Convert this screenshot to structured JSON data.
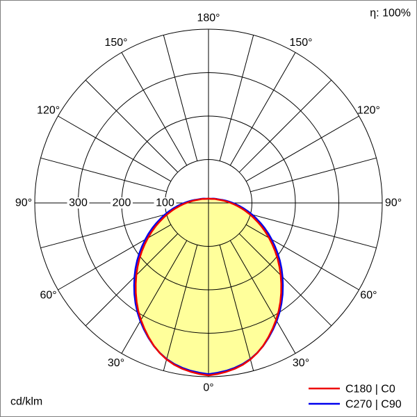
{
  "labels": {
    "efficiency": "η: 100%",
    "unit": "cd/klm"
  },
  "chart_data": {
    "type": "line",
    "coordinate_system": "polar",
    "description": "Luminous intensity distribution curve (photometric polar diagram), 0° at nadir (bottom), values in cd/klm, curves symmetric left/right",
    "unit": "cd/klm",
    "fill_color": "#ffff9b",
    "radial_ticks": [
      100,
      200,
      300
    ],
    "radial_max": 400,
    "spoke_step_deg": 15,
    "gamma_step_deg": 15,
    "gamma_deg": [
      0,
      15,
      30,
      45,
      60,
      75,
      90,
      105,
      120,
      135,
      150,
      165,
      180
    ],
    "series": [
      {
        "name": "C180 | C0",
        "plane": "c180-c0",
        "color": "#ee0000",
        "values": [
          397,
          373,
          311,
          235,
          161,
          97,
          51,
          27,
          18,
          13,
          11,
          10,
          10
        ]
      },
      {
        "name": "C270 | C90",
        "plane": "c270-c90",
        "color": "#0000ee",
        "values": [
          394,
          372,
          314,
          241,
          168,
          104,
          56,
          29,
          19,
          14,
          11,
          10,
          10
        ]
      }
    ],
    "angle_labels": [
      {
        "deg": 0,
        "label": "0°"
      },
      {
        "deg": 30,
        "label": "30°"
      },
      {
        "deg": 60,
        "label": "60°"
      },
      {
        "deg": 90,
        "label": "90°"
      },
      {
        "deg": 120,
        "label": "120°"
      },
      {
        "deg": 150,
        "label": "150°"
      },
      {
        "deg": 180,
        "label": "180°"
      }
    ]
  }
}
